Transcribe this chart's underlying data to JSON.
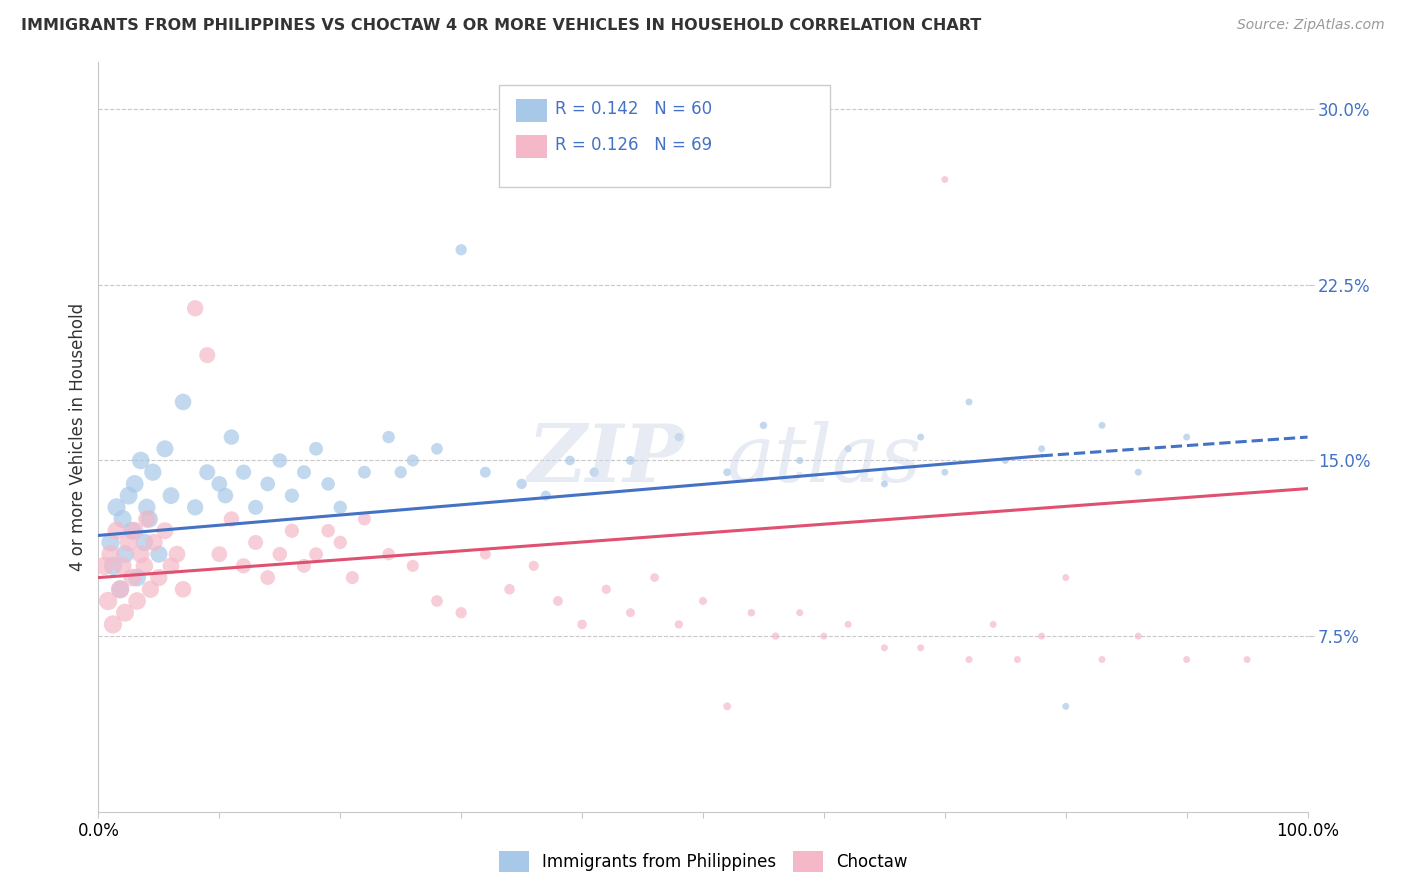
{
  "title": "IMMIGRANTS FROM PHILIPPINES VS CHOCTAW 4 OR MORE VEHICLES IN HOUSEHOLD CORRELATION CHART",
  "source": "Source: ZipAtlas.com",
  "ylabel": "4 or more Vehicles in Household",
  "xlim": [
    0,
    100
  ],
  "ylim": [
    0,
    32
  ],
  "ytick_values": [
    7.5,
    15.0,
    22.5,
    30.0
  ],
  "legend_r1": "R = 0.142",
  "legend_n1": "N = 60",
  "legend_r2": "R = 0.126",
  "legend_n2": "N = 69",
  "color_blue": "#a8c8e8",
  "color_pink": "#f4b8c8",
  "color_blue_line": "#4472c4",
  "color_pink_line": "#e05070",
  "blue_line_x0": 0,
  "blue_line_y0": 11.8,
  "blue_line_x1": 78,
  "blue_line_y1": 15.2,
  "blue_dash_x0": 78,
  "blue_dash_y0": 15.2,
  "blue_dash_x1": 100,
  "blue_dash_y1": 16.0,
  "pink_line_x0": 0,
  "pink_line_y0": 10.0,
  "pink_line_x1": 100,
  "pink_line_y1": 13.8,
  "blue_x": [
    1.0,
    1.2,
    1.5,
    1.8,
    2.0,
    2.2,
    2.5,
    2.8,
    3.0,
    3.2,
    3.5,
    3.8,
    4.0,
    4.2,
    4.5,
    5.0,
    5.5,
    6.0,
    7.0,
    8.0,
    9.0,
    10.0,
    10.5,
    11.0,
    12.0,
    13.0,
    14.0,
    15.0,
    16.0,
    17.0,
    18.0,
    19.0,
    20.0,
    22.0,
    24.0,
    25.0,
    26.0,
    28.0,
    30.0,
    32.0,
    35.0,
    37.0,
    39.0,
    41.0,
    44.0,
    48.0,
    52.0,
    55.0,
    58.0,
    62.0,
    65.0,
    68.0,
    70.0,
    72.0,
    75.0,
    78.0,
    80.0,
    83.0,
    86.0,
    90.0
  ],
  "blue_y": [
    11.5,
    10.5,
    13.0,
    9.5,
    12.5,
    11.0,
    13.5,
    12.0,
    14.0,
    10.0,
    15.0,
    11.5,
    13.0,
    12.5,
    14.5,
    11.0,
    15.5,
    13.5,
    17.5,
    13.0,
    14.5,
    14.0,
    13.5,
    16.0,
    14.5,
    13.0,
    14.0,
    15.0,
    13.5,
    14.5,
    15.5,
    14.0,
    13.0,
    14.5,
    16.0,
    14.5,
    15.0,
    15.5,
    24.0,
    14.5,
    14.0,
    13.5,
    15.0,
    14.5,
    15.0,
    16.0,
    14.5,
    16.5,
    15.0,
    15.5,
    14.0,
    16.0,
    14.5,
    17.5,
    15.0,
    15.5,
    4.5,
    16.5,
    14.5,
    16.0
  ],
  "pink_x": [
    0.5,
    0.8,
    1.0,
    1.2,
    1.5,
    1.8,
    2.0,
    2.2,
    2.5,
    2.8,
    3.0,
    3.2,
    3.5,
    3.8,
    4.0,
    4.3,
    4.6,
    5.0,
    5.5,
    6.0,
    6.5,
    7.0,
    8.0,
    9.0,
    10.0,
    11.0,
    12.0,
    13.0,
    14.0,
    15.0,
    16.0,
    17.0,
    18.0,
    19.0,
    20.0,
    21.0,
    22.0,
    24.0,
    26.0,
    28.0,
    30.0,
    32.0,
    34.0,
    36.0,
    38.0,
    40.0,
    42.0,
    44.0,
    46.0,
    48.0,
    50.0,
    52.0,
    54.0,
    56.0,
    58.0,
    60.0,
    62.0,
    65.0,
    68.0,
    70.0,
    72.0,
    74.0,
    76.0,
    78.0,
    80.0,
    83.0,
    86.0,
    90.0,
    95.0
  ],
  "pink_y": [
    10.5,
    9.0,
    11.0,
    8.0,
    12.0,
    9.5,
    10.5,
    8.5,
    11.5,
    10.0,
    12.0,
    9.0,
    11.0,
    10.5,
    12.5,
    9.5,
    11.5,
    10.0,
    12.0,
    10.5,
    11.0,
    9.5,
    21.5,
    19.5,
    11.0,
    12.5,
    10.5,
    11.5,
    10.0,
    11.0,
    12.0,
    10.5,
    11.0,
    12.0,
    11.5,
    10.0,
    12.5,
    11.0,
    10.5,
    9.0,
    8.5,
    11.0,
    9.5,
    10.5,
    9.0,
    8.0,
    9.5,
    8.5,
    10.0,
    8.0,
    9.0,
    4.5,
    8.5,
    7.5,
    8.5,
    7.5,
    8.0,
    7.0,
    7.0,
    27.0,
    6.5,
    8.0,
    6.5,
    7.5,
    10.0,
    6.5,
    7.5,
    6.5,
    6.5
  ]
}
